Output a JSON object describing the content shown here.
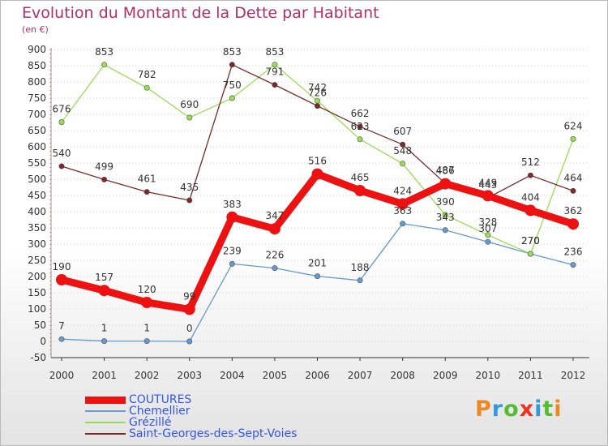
{
  "chart_data": {
    "type": "line",
    "title": "Evolution du Montant de la Dette par Habitant",
    "subtitle": "(en €)",
    "categories": [
      "2000",
      "2001",
      "2002",
      "2003",
      "2004",
      "2005",
      "2006",
      "2007",
      "2008",
      "2009",
      "2010",
      "2011",
      "2012"
    ],
    "ylim": [
      -50,
      900
    ],
    "yticks": [
      -50,
      0,
      50,
      100,
      150,
      200,
      250,
      300,
      350,
      400,
      450,
      500,
      550,
      600,
      650,
      700,
      750,
      800,
      850,
      900
    ],
    "grid": true,
    "legend_position": "bottom-left",
    "series": [
      {
        "name": "COUTURES",
        "color": "#ee1111",
        "values": [
          190,
          157,
          120,
          99,
          383,
          347,
          516,
          465,
          424,
          486,
          449,
          404,
          362
        ]
      },
      {
        "name": "Chemellier",
        "color": "#6699cc",
        "values": [
          7,
          1,
          1,
          0,
          239,
          226,
          201,
          188,
          363,
          343,
          307,
          270,
          236
        ]
      },
      {
        "name": "Grézillé",
        "color": "#99dd55",
        "values": [
          676,
          853,
          782,
          690,
          750,
          853,
          742,
          623,
          548,
          390,
          328,
          270,
          624
        ]
      },
      {
        "name": "Saint-Georges-des-Sept-Voies",
        "color": "#7a2a2a",
        "values": [
          540,
          499,
          461,
          435,
          853,
          791,
          726,
          662,
          607,
          487,
          443,
          512,
          464
        ]
      }
    ]
  },
  "logo": {
    "letters": [
      "P",
      "r",
      "o",
      "x",
      "i",
      "t",
      "i"
    ],
    "colors": [
      "#ee8822",
      "#3399dd",
      "#55bb33",
      "#ee3322",
      "#3399dd",
      "#55bb33",
      "#ee8822"
    ]
  }
}
